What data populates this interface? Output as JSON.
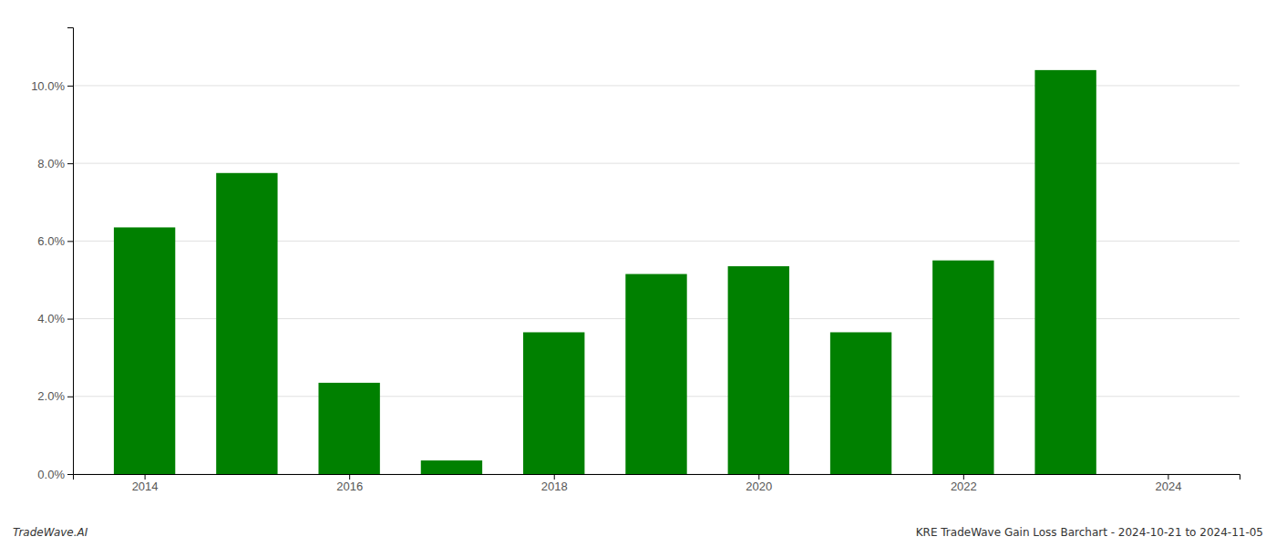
{
  "chart_data": {
    "type": "bar",
    "x": [
      2014,
      2015,
      2016,
      2017,
      2018,
      2019,
      2020,
      2021,
      2022,
      2023
    ],
    "values": [
      0.0635,
      0.0775,
      0.0235,
      0.0035,
      0.0365,
      0.0515,
      0.0535,
      0.0365,
      0.055,
      0.104
    ],
    "color": "#008000",
    "xlim": [
      2013.3,
      2024.7
    ],
    "xticks": [
      2014,
      2016,
      2018,
      2020,
      2022,
      2024
    ],
    "ylim": [
      0,
      0.115
    ],
    "yticks": [
      {
        "value": 0.0,
        "label": "0.0%"
      },
      {
        "value": 0.02,
        "label": "2.0%"
      },
      {
        "value": 0.04,
        "label": "4.0%"
      },
      {
        "value": 0.06,
        "label": "6.0%"
      },
      {
        "value": 0.08,
        "label": "8.0%"
      },
      {
        "value": 0.1,
        "label": "10.0%"
      }
    ],
    "grid": true,
    "annotations": [
      "TradeWave.AI",
      "KRE TradeWave Gain Loss Barchart - 2024-10-21 to 2024-11-05"
    ]
  }
}
